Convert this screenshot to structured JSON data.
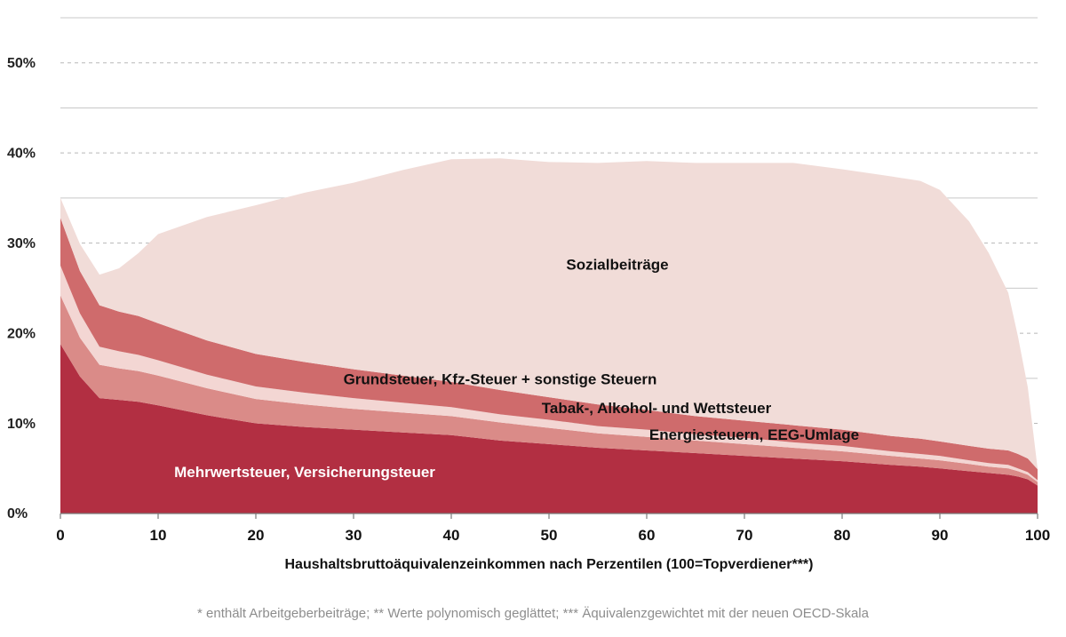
{
  "chart_data": {
    "type": "area",
    "x_label": "Haushaltsbruttoäquivalenzeinkommen nach Perzentilen (100=Topverdiener***)",
    "footnote": "* enthält Arbeitgeberbeiträge; ** Werte polynomisch geglättet; *** Äquivalenzgewichtet mit der neuen OECD-Skala",
    "xlim": [
      0,
      100
    ],
    "ylim": [
      0,
      55
    ],
    "y_ticks": [
      {
        "value": 0,
        "label": "0%"
      },
      {
        "value": 10,
        "label": "10%"
      },
      {
        "value": 20,
        "label": "20%"
      },
      {
        "value": 30,
        "label": "30%"
      },
      {
        "value": 40,
        "label": "40%"
      },
      {
        "value": 50,
        "label": "50%"
      }
    ],
    "x_ticks": [
      {
        "value": 0,
        "label": "0"
      },
      {
        "value": 10,
        "label": "10"
      },
      {
        "value": 20,
        "label": "20"
      },
      {
        "value": 30,
        "label": "30"
      },
      {
        "value": 40,
        "label": "40"
      },
      {
        "value": 50,
        "label": "50"
      },
      {
        "value": 60,
        "label": "60"
      },
      {
        "value": 70,
        "label": "70"
      },
      {
        "value": 80,
        "label": "80"
      },
      {
        "value": 90,
        "label": "90"
      },
      {
        "value": 100,
        "label": "100"
      }
    ],
    "grid": {
      "solid": [
        5,
        15,
        25,
        35,
        45,
        55
      ],
      "dashed": [
        10,
        20,
        30,
        40,
        50
      ]
    },
    "stacked": true,
    "x": [
      0,
      2,
      4,
      6,
      8,
      10,
      15,
      20,
      25,
      30,
      35,
      40,
      45,
      50,
      55,
      60,
      65,
      70,
      75,
      80,
      85,
      88,
      90,
      93,
      95,
      97,
      98,
      99,
      100
    ],
    "series": [
      {
        "name": "Mehrwertsteuer, Versicherungsteuer",
        "color": "#b22f42",
        "label_color": "#ffffff",
        "label_anchor": {
          "x": 25,
          "y": 4.5
        },
        "values": [
          18.8,
          15.2,
          12.8,
          12.6,
          12.4,
          12.0,
          10.9,
          10.0,
          9.6,
          9.3,
          9.0,
          8.7,
          8.1,
          7.7,
          7.3,
          7.0,
          6.7,
          6.4,
          6.1,
          5.8,
          5.4,
          5.2,
          5.0,
          4.7,
          4.5,
          4.3,
          4.1,
          3.8,
          3.1
        ]
      },
      {
        "name": "Energiesteuern, EEG-Umlage",
        "color": "#da8b88",
        "label_color": "#111111",
        "label_anchor": {
          "x": 71,
          "y": 8.6
        },
        "values": [
          5.4,
          4.3,
          3.7,
          3.5,
          3.4,
          3.3,
          3.0,
          2.7,
          2.5,
          2.3,
          2.2,
          2.1,
          2.0,
          1.8,
          1.6,
          1.5,
          1.4,
          1.3,
          1.2,
          1.1,
          1.0,
          0.9,
          0.9,
          0.8,
          0.7,
          0.7,
          0.6,
          0.5,
          0.4
        ]
      },
      {
        "name": "Tabak-, Alkohol- und Wettsteuer",
        "color": "#f3d6d3",
        "label_color": "#111111",
        "label_anchor": {
          "x": 61,
          "y": 11.6
        },
        "values": [
          3.3,
          2.7,
          2.0,
          1.9,
          1.8,
          1.7,
          1.5,
          1.4,
          1.3,
          1.2,
          1.1,
          1.0,
          0.9,
          0.9,
          0.8,
          0.8,
          0.7,
          0.7,
          0.6,
          0.6,
          0.5,
          0.5,
          0.5,
          0.4,
          0.4,
          0.4,
          0.3,
          0.3,
          0.2
        ]
      },
      {
        "name": "Grundsteuer, Kfz-Steuer + sonstige Steuern",
        "color": "#cf6b6c",
        "label_color": "#111111",
        "label_anchor": {
          "x": 45,
          "y": 14.8
        },
        "values": [
          5.3,
          4.7,
          4.6,
          4.4,
          4.3,
          4.1,
          3.8,
          3.6,
          3.4,
          3.2,
          3.0,
          2.8,
          2.7,
          2.5,
          2.4,
          2.2,
          2.0,
          1.9,
          1.9,
          1.8,
          1.7,
          1.7,
          1.6,
          1.6,
          1.6,
          1.6,
          1.6,
          1.5,
          1.2
        ]
      },
      {
        "name": "Sozialbeiträge",
        "color": "#f1dcd8",
        "label_color": "#111111",
        "label_anchor": {
          "x": 57,
          "y": 27.5
        },
        "values": [
          2.2,
          3.0,
          3.4,
          4.8,
          7.0,
          9.9,
          13.7,
          16.5,
          18.8,
          20.7,
          22.8,
          24.7,
          25.7,
          26.1,
          26.8,
          27.6,
          28.1,
          28.6,
          29.1,
          28.9,
          28.8,
          28.6,
          27.9,
          24.9,
          21.7,
          17.5,
          13.0,
          7.9,
          0.1
        ]
      }
    ]
  }
}
